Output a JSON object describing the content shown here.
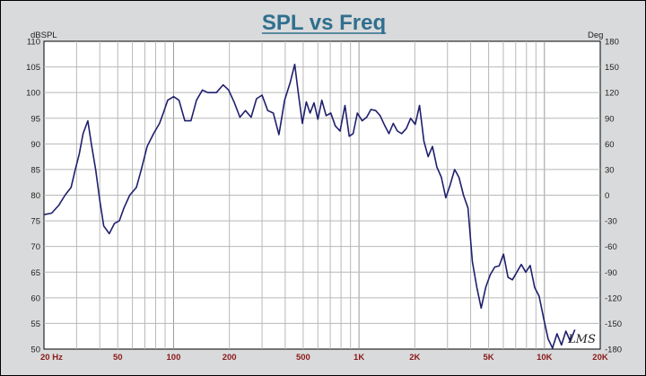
{
  "chart_data": {
    "type": "line",
    "title": "SPL vs Freq",
    "ylabel_left": "dBSPL",
    "ylabel_right": "Deg",
    "x_scale": "log",
    "xlim": [
      20,
      20000
    ],
    "ylim": [
      50,
      110
    ],
    "ylim_right": [
      -180,
      180
    ],
    "grid": true,
    "x_tick_labels": [
      {
        "value": 20,
        "label": "20 Hz"
      },
      {
        "value": 50,
        "label": "50"
      },
      {
        "value": 100,
        "label": "100"
      },
      {
        "value": 200,
        "label": "200"
      },
      {
        "value": 500,
        "label": "500"
      },
      {
        "value": 1000,
        "label": "1K"
      },
      {
        "value": 2000,
        "label": "2K"
      },
      {
        "value": 5000,
        "label": "5K"
      },
      {
        "value": 10000,
        "label": "10K"
      },
      {
        "value": 20000,
        "label": "20K"
      }
    ],
    "y_ticks": [
      50,
      55,
      60,
      65,
      70,
      75,
      80,
      85,
      90,
      95,
      100,
      105,
      110
    ],
    "y_right_ticks": [
      -180,
      -150,
      -120,
      -90,
      -60,
      -30,
      0,
      30,
      60,
      90,
      120,
      150,
      180
    ],
    "series": [
      {
        "color": "#1f1f6e",
        "points": [
          [
            20,
            76.2
          ],
          [
            22,
            76.5
          ],
          [
            24,
            78
          ],
          [
            26,
            80
          ],
          [
            28,
            81.5
          ],
          [
            29.5,
            85
          ],
          [
            31,
            88
          ],
          [
            32.5,
            92
          ],
          [
            34.5,
            94.5
          ],
          [
            36,
            90
          ],
          [
            38,
            85
          ],
          [
            40,
            79
          ],
          [
            42,
            74
          ],
          [
            45,
            72.5
          ],
          [
            48,
            74.5
          ],
          [
            51,
            75
          ],
          [
            54,
            77.5
          ],
          [
            58,
            80
          ],
          [
            63,
            81.5
          ],
          [
            67,
            85
          ],
          [
            72,
            89.5
          ],
          [
            78,
            92
          ],
          [
            84,
            94
          ],
          [
            88,
            96
          ],
          [
            93,
            98.5
          ],
          [
            100,
            99.2
          ],
          [
            107,
            98.5
          ],
          [
            115,
            94.5
          ],
          [
            124,
            94.5
          ],
          [
            133,
            98.5
          ],
          [
            143,
            100.5
          ],
          [
            153,
            100
          ],
          [
            170,
            100
          ],
          [
            185,
            101.5
          ],
          [
            198,
            100.5
          ],
          [
            213,
            98
          ],
          [
            228,
            95.2
          ],
          [
            244,
            96.5
          ],
          [
            262,
            95.2
          ],
          [
            280,
            98.8
          ],
          [
            300,
            99.5
          ],
          [
            322,
            96.5
          ],
          [
            345,
            96
          ],
          [
            370,
            91.8
          ],
          [
            397,
            98.5
          ],
          [
            426,
            102
          ],
          [
            450,
            105.5
          ],
          [
            470,
            100
          ],
          [
            495,
            94
          ],
          [
            520,
            98.2
          ],
          [
            545,
            96
          ],
          [
            572,
            98
          ],
          [
            600,
            94.8
          ],
          [
            630,
            98.5
          ],
          [
            665,
            95.5
          ],
          [
            705,
            96
          ],
          [
            745,
            93.5
          ],
          [
            790,
            92.5
          ],
          [
            840,
            97.5
          ],
          [
            885,
            91.5
          ],
          [
            930,
            92
          ],
          [
            980,
            96
          ],
          [
            1040,
            94.5
          ],
          [
            1100,
            95.2
          ],
          [
            1160,
            96.7
          ],
          [
            1230,
            96.5
          ],
          [
            1300,
            95.5
          ],
          [
            1380,
            93.5
          ],
          [
            1450,
            92
          ],
          [
            1530,
            94
          ],
          [
            1610,
            92.5
          ],
          [
            1700,
            92
          ],
          [
            1800,
            93
          ],
          [
            1900,
            95
          ],
          [
            2010,
            93.8
          ],
          [
            2120,
            97.5
          ],
          [
            2240,
            90.5
          ],
          [
            2360,
            87.5
          ],
          [
            2490,
            89.5
          ],
          [
            2630,
            85.5
          ],
          [
            2780,
            83.5
          ],
          [
            2940,
            79.5
          ],
          [
            3100,
            82
          ],
          [
            3280,
            85
          ],
          [
            3460,
            83.5
          ],
          [
            3660,
            80
          ],
          [
            3870,
            77.5
          ],
          [
            4090,
            67
          ],
          [
            4320,
            62
          ],
          [
            4560,
            58
          ],
          [
            4820,
            62
          ],
          [
            5100,
            64.5
          ],
          [
            5400,
            66
          ],
          [
            5700,
            66.2
          ],
          [
            6020,
            68.5
          ],
          [
            6360,
            64
          ],
          [
            6720,
            63.5
          ],
          [
            7100,
            65
          ],
          [
            7500,
            66.5
          ],
          [
            7930,
            65
          ],
          [
            8380,
            66.3
          ],
          [
            8860,
            62
          ],
          [
            9370,
            60.3
          ],
          [
            9900,
            56
          ],
          [
            10470,
            52
          ],
          [
            11060,
            50.2
          ],
          [
            11690,
            53
          ],
          [
            12360,
            50.8
          ],
          [
            13060,
            53.5
          ],
          [
            13800,
            51.5
          ],
          [
            14590,
            53.8
          ]
        ]
      }
    ],
    "logo": "LMS"
  }
}
